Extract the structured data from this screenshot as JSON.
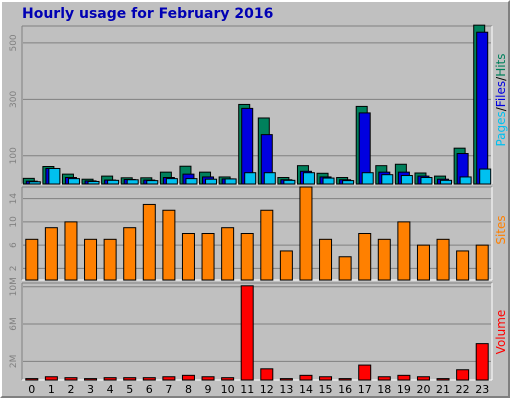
{
  "chart_data": {
    "type": "bar",
    "title": "Hourly usage for February 2016",
    "categories": [
      "0",
      "1",
      "2",
      "3",
      "4",
      "5",
      "6",
      "7",
      "8",
      "9",
      "10",
      "11",
      "12",
      "13",
      "14",
      "15",
      "16",
      "17",
      "18",
      "19",
      "20",
      "21",
      "22",
      "23"
    ],
    "panels": [
      {
        "name": "pages-files-hits",
        "legend": [
          "Pages",
          "/",
          "Files",
          "/",
          "Hits"
        ],
        "legend_colors": [
          "#00c0f0",
          "#000000",
          "#0000e0",
          "#000000",
          "#00805c"
        ],
        "y_ticks": [
          {
            "value": 100,
            "label": "100"
          },
          {
            "value": 300,
            "label": "300"
          },
          {
            "value": 500,
            "label": "500"
          }
        ],
        "ylim": [
          0,
          560
        ],
        "series": [
          {
            "name": "Hits",
            "color": "#00805c",
            "values": [
              20,
              62,
              35,
              17,
              28,
              22,
              22,
              42,
              63,
              42,
              25,
              282,
              234,
              23,
              65,
              38,
              23,
              275,
              65,
              70,
              39,
              28,
              127,
              563
            ]
          },
          {
            "name": "Files",
            "color": "#0000e0",
            "values": [
              10,
              55,
              23,
              11,
              14,
              16,
              14,
              23,
              35,
              25,
              18,
              268,
              175,
              15,
              45,
              25,
              15,
              252,
              42,
              42,
              28,
              17,
              108,
              538
            ]
          },
          {
            "name": "Pages",
            "color": "#00c0f0",
            "values": [
              8,
              55,
              19,
              9,
              13,
              15,
              12,
              19,
              19,
              17,
              18,
              40,
              40,
              13,
              40,
              21,
              12,
              40,
              33,
              30,
              23,
              13,
              25,
              53
            ]
          }
        ]
      },
      {
        "name": "sites",
        "legend": [
          "Sites"
        ],
        "legend_colors": [
          "#ff8000"
        ],
        "y_ticks": [
          {
            "value": 2,
            "label": "2"
          },
          {
            "value": 6,
            "label": "6"
          },
          {
            "value": 10,
            "label": "10"
          },
          {
            "value": 14,
            "label": "14"
          }
        ],
        "ylim": [
          0,
          16
        ],
        "series": [
          {
            "name": "Sites",
            "color": "#ff8000",
            "values": [
              7,
              9,
              10,
              7,
              7,
              9,
              13,
              12,
              8,
              8,
              9,
              8,
              12,
              5,
              16,
              7,
              4,
              8,
              7,
              10,
              6,
              7,
              5,
              6
            ]
          }
        ]
      },
      {
        "name": "volume",
        "legend": [
          "Volume"
        ],
        "legend_colors": [
          "#ff0000"
        ],
        "y_ticks": [
          {
            "value": 2,
            "label": "2M"
          },
          {
            "value": 6,
            "label": "6M"
          },
          {
            "value": 10,
            "label": "10M"
          }
        ],
        "ylim": [
          0,
          10.4
        ],
        "series": [
          {
            "name": "Volume",
            "color": "#ff0000",
            "values": [
              0.15,
              0.35,
              0.25,
              0.15,
              0.25,
              0.25,
              0.25,
              0.35,
              0.5,
              0.35,
              0.25,
              10.1,
              1.2,
              0.15,
              0.5,
              0.35,
              0.15,
              1.6,
              0.35,
              0.5,
              0.35,
              0.15,
              1.1,
              3.9
            ]
          }
        ]
      }
    ]
  }
}
